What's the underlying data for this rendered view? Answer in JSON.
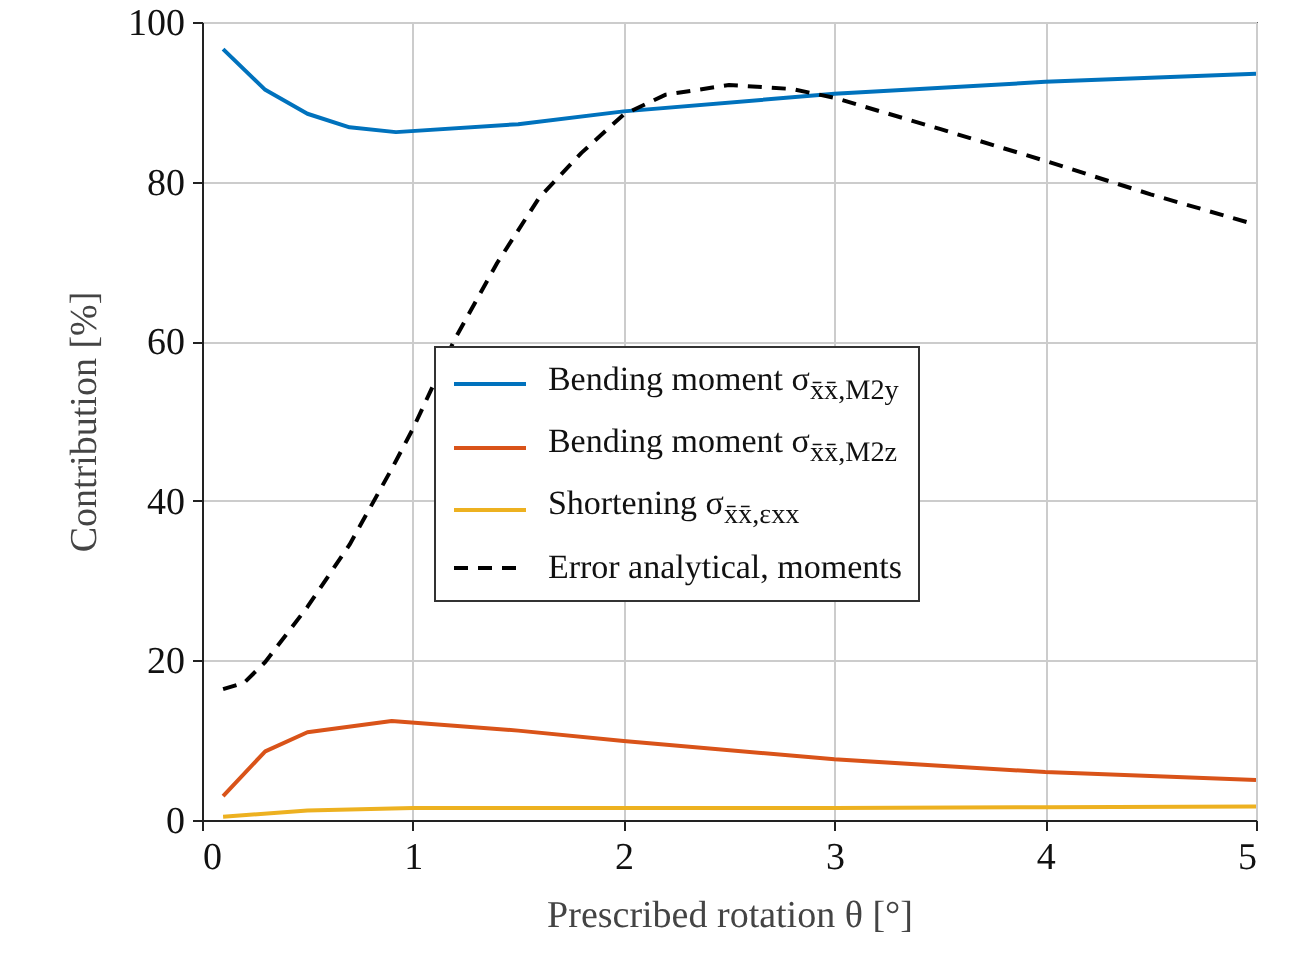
{
  "chart_data": {
    "type": "line",
    "xlabel": "Prescribed rotation θ [°]",
    "ylabel": "Contribution [%]",
    "xlim": [
      0,
      5
    ],
    "ylim": [
      0,
      100
    ],
    "xticks": [
      0,
      1,
      2,
      3,
      4,
      5
    ],
    "yticks": [
      0,
      20,
      40,
      60,
      80,
      100
    ],
    "grid": true,
    "legend": "center",
    "line_style": "solid",
    "marker": "none",
    "series": [
      {
        "name": "Bending moment σ$_{x̄x̄,M2y}$",
        "color": "#0072bd",
        "x": [
          0.1,
          0.3,
          0.5,
          0.7,
          0.92,
          1.5,
          2,
          3,
          4,
          5
        ],
        "values": [
          96.6,
          91.5,
          88.5,
          86.8,
          86.2,
          87.2,
          88.8,
          91.0,
          92.5,
          93.5
        ]
      },
      {
        "name": "Bending moment σ$_{x̄x̄,M2z}$",
        "color": "#d95319",
        "x": [
          0.1,
          0.3,
          0.5,
          0.9,
          1.5,
          2,
          3,
          4,
          5
        ],
        "values": [
          3.0,
          8.6,
          11.0,
          12.4,
          11.2,
          9.9,
          7.6,
          6.0,
          5.0
        ]
      },
      {
        "name": "Shortening σ$_{x̄x̄,εxx}$",
        "color": "#edb120",
        "x": [
          0.1,
          0.5,
          1,
          2,
          3,
          4,
          5
        ],
        "values": [
          0.4,
          1.2,
          1.5,
          1.5,
          1.5,
          1.6,
          1.7
        ]
      },
      {
        "name": "Error analytical, moments",
        "color": "#000000",
        "line_style": "dashed",
        "x": [
          0.1,
          0.2,
          0.3,
          0.5,
          0.7,
          0.9,
          1.0,
          1.2,
          1.4,
          1.6,
          1.8,
          2.0,
          2.2,
          2.5,
          2.8,
          3.0,
          3.5,
          4.0,
          4.5,
          5.0
        ],
        "values": [
          16.4,
          17.2,
          19.8,
          26.7,
          34.5,
          44,
          49,
          60.3,
          69.8,
          78,
          83.6,
          88.4,
          90.9,
          92.1,
          91.6,
          90.5,
          86.6,
          82.6,
          78.4,
          74.6
        ]
      }
    ]
  }
}
